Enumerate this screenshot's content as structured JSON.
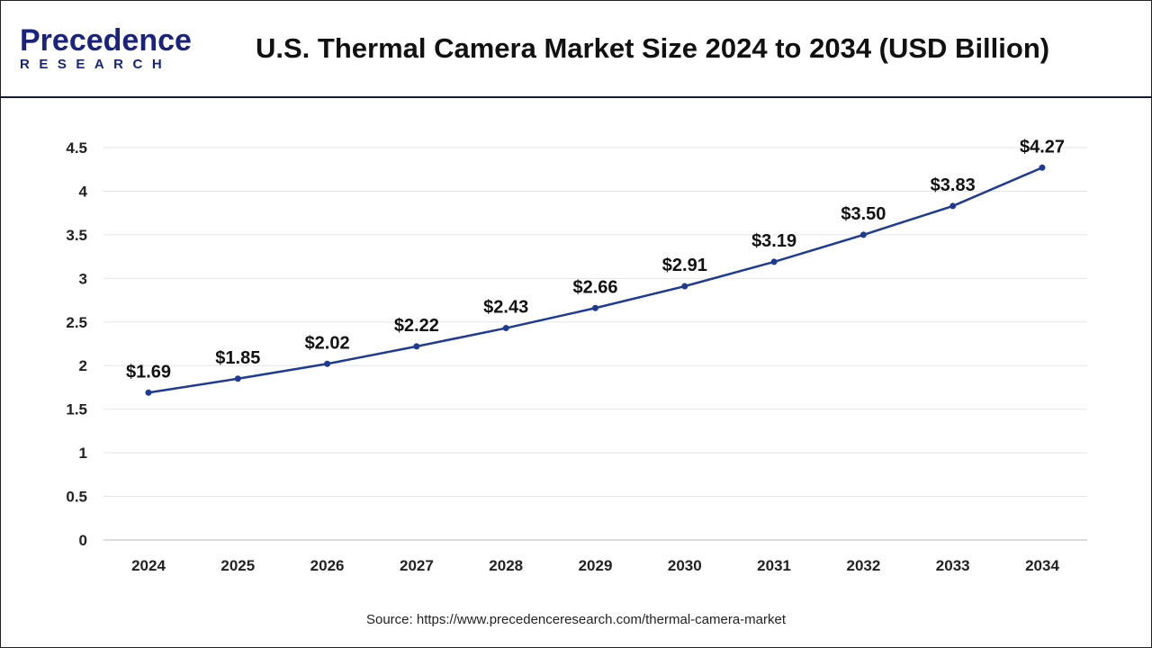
{
  "logo": {
    "text_main": "Precedence",
    "text_sub": "RESEARCH"
  },
  "header": {
    "title": "U.S. Thermal Camera Market Size 2024 to 2034 (USD Billion)"
  },
  "source": "Source: https://www.precedenceresearch.com/thermal-camera-market",
  "colors": {
    "line": "#1f3a93",
    "grid": "#e6e6e6",
    "axis": "#bdbdbd"
  },
  "chart_data": {
    "type": "line",
    "title": "U.S. Thermal Camera Market Size 2024 to 2034 (USD Billion)",
    "xlabel": "",
    "ylabel": "",
    "categories": [
      "2024",
      "2025",
      "2026",
      "2027",
      "2028",
      "2029",
      "2030",
      "2031",
      "2032",
      "2033",
      "2034"
    ],
    "values": [
      1.69,
      1.85,
      2.02,
      2.22,
      2.43,
      2.66,
      2.91,
      3.19,
      3.5,
      3.83,
      4.27
    ],
    "data_labels": [
      "$1.69",
      "$1.85",
      "$2.02",
      "$2.22",
      "$2.43",
      "$2.66",
      "$2.91",
      "$3.19",
      "$3.50",
      "$3.83",
      "$4.27"
    ],
    "ylim": [
      0,
      4.5
    ],
    "yticks": [
      "0",
      "0.5",
      "1",
      "1.5",
      "2",
      "2.5",
      "3",
      "3.5",
      "4",
      "4.5"
    ],
    "grid": true,
    "legend": "none"
  }
}
